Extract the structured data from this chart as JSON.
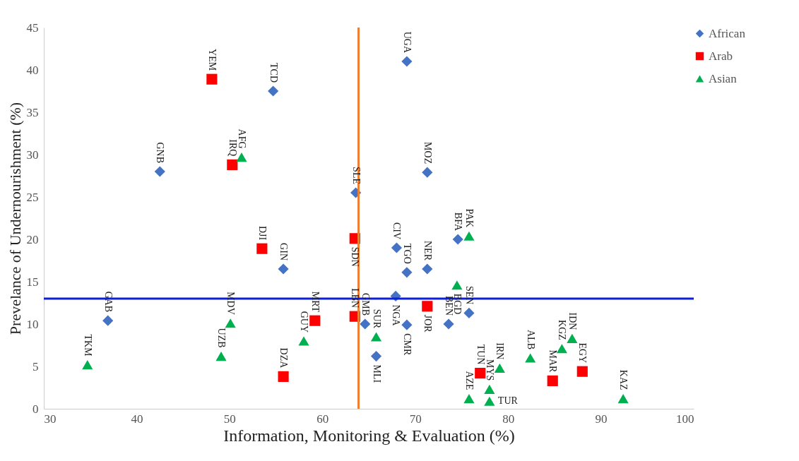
{
  "chart_data": {
    "type": "scatter",
    "xlabel": "Information, Monitoring & Evaluation (%)",
    "ylabel": "Prevelance of Undernourishment (%)",
    "xlim": [
      30,
      100
    ],
    "ylim": [
      0,
      45
    ],
    "xticks": [
      30,
      40,
      50,
      60,
      70,
      80,
      90,
      100
    ],
    "yticks": [
      0,
      5,
      10,
      15,
      20,
      25,
      30,
      35,
      40,
      45
    ],
    "grid": false,
    "legend": "right",
    "series": [
      {
        "name": "African",
        "color": "#4472c4",
        "marker": "diamond",
        "x": [
          69.1,
          54.7,
          42.5,
          63.6,
          71.3,
          68.0,
          74.6,
          55.8,
          71.3,
          69.1,
          67.9,
          64.6,
          69.1,
          73.6,
          75.8,
          36.9,
          65.8
        ],
        "values": [
          41.0,
          37.5,
          28.0,
          25.5,
          27.9,
          19.0,
          20.0,
          16.5,
          16.5,
          16.1,
          13.3,
          10.0,
          9.9,
          10.0,
          11.3,
          10.4,
          6.2
        ]
      },
      {
        "name": "Arab",
        "color": "#ff0000",
        "marker": "square",
        "x": [
          48.1,
          50.3,
          53.5,
          63.5,
          63.5,
          59.2,
          55.8,
          71.3,
          77.0,
          84.8,
          88.0
        ],
        "values": [
          38.9,
          28.8,
          18.9,
          20.1,
          10.9,
          10.4,
          3.8,
          12.1,
          4.2,
          3.3,
          4.4
        ]
      },
      {
        "name": "Asian",
        "color": "#00b050",
        "marker": "triangle",
        "x": [
          51.3,
          75.8,
          74.5,
          34.7,
          50.1,
          49.1,
          58.0,
          65.8,
          75.8,
          78.0,
          78.0,
          79.1,
          82.4,
          86.9,
          85.8,
          92.4
        ],
        "values": [
          29.7,
          20.4,
          14.6,
          5.2,
          10.1,
          6.2,
          8.0,
          8.5,
          1.2,
          2.3,
          0.9,
          4.8,
          6.0,
          8.3,
          7.1,
          1.2
        ]
      }
    ],
    "ref_lines": [
      {
        "axis": "x",
        "value": 63.9,
        "color": "#ed7d31"
      },
      {
        "axis": "y",
        "value": 13.0,
        "color": "#0b1fd6"
      }
    ],
    "annotations": [
      {
        "text": "UGA",
        "x": 69.1,
        "y": 41.0
      },
      {
        "text": "TCD",
        "x": 54.7,
        "y": 37.5
      },
      {
        "text": "GNB",
        "x": 42.5,
        "y": 28.0
      },
      {
        "text": "SLE",
        "x": 63.6,
        "y": 25.5
      },
      {
        "text": "MOZ",
        "x": 71.3,
        "y": 27.9
      },
      {
        "text": "CIV",
        "x": 68.0,
        "y": 19.0
      },
      {
        "text": "BFA",
        "x": 74.6,
        "y": 20.0
      },
      {
        "text": "GIN",
        "x": 55.8,
        "y": 16.5
      },
      {
        "text": "NER",
        "x": 71.3,
        "y": 16.5
      },
      {
        "text": "TGO",
        "x": 69.1,
        "y": 16.1
      },
      {
        "text": "NGA",
        "x": 67.9,
        "y": 13.3
      },
      {
        "text": "GMB",
        "x": 64.6,
        "y": 10.0
      },
      {
        "text": "CMR",
        "x": 69.1,
        "y": 9.9
      },
      {
        "text": "BEN",
        "x": 73.6,
        "y": 10.0
      },
      {
        "text": "SEN",
        "x": 75.8,
        "y": 11.3
      },
      {
        "text": "GAB",
        "x": 36.9,
        "y": 10.4
      },
      {
        "text": "MLI",
        "x": 65.8,
        "y": 6.2
      },
      {
        "text": "YEM",
        "x": 48.1,
        "y": 38.9
      },
      {
        "text": "IRQ",
        "x": 50.3,
        "y": 28.8
      },
      {
        "text": "DJI",
        "x": 53.5,
        "y": 18.9
      },
      {
        "text": "SDN",
        "x": 63.5,
        "y": 20.1
      },
      {
        "text": "LBN",
        "x": 63.5,
        "y": 10.9
      },
      {
        "text": "MRT",
        "x": 59.2,
        "y": 10.4
      },
      {
        "text": "DZA",
        "x": 55.8,
        "y": 3.8
      },
      {
        "text": "JOR",
        "x": 71.3,
        "y": 12.1
      },
      {
        "text": "TUN",
        "x": 77.0,
        "y": 4.2
      },
      {
        "text": "MAR",
        "x": 84.8,
        "y": 3.3
      },
      {
        "text": "EGY",
        "x": 88.0,
        "y": 4.4
      },
      {
        "text": "AFG",
        "x": 51.3,
        "y": 29.7
      },
      {
        "text": "PAK",
        "x": 75.8,
        "y": 20.4
      },
      {
        "text": "BGD",
        "x": 74.5,
        "y": 14.6
      },
      {
        "text": "TKM",
        "x": 34.7,
        "y": 5.2
      },
      {
        "text": "MDV",
        "x": 50.1,
        "y": 10.1
      },
      {
        "text": "UZB",
        "x": 49.1,
        "y": 6.2
      },
      {
        "text": "GUY",
        "x": 58.0,
        "y": 8.0
      },
      {
        "text": "SUR",
        "x": 65.8,
        "y": 8.5
      },
      {
        "text": "AZE",
        "x": 75.8,
        "y": 1.2
      },
      {
        "text": "MYS",
        "x": 78.0,
        "y": 2.3
      },
      {
        "text": "TUR",
        "x": 78.0,
        "y": 0.9
      },
      {
        "text": "IRN",
        "x": 79.1,
        "y": 4.8
      },
      {
        "text": "ALB",
        "x": 82.4,
        "y": 6.0
      },
      {
        "text": "IDN",
        "x": 86.9,
        "y": 8.3
      },
      {
        "text": "KGZ",
        "x": 85.8,
        "y": 7.1
      },
      {
        "text": "KAZ",
        "x": 92.4,
        "y": 1.2
      }
    ]
  }
}
